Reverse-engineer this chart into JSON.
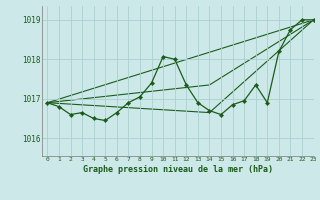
{
  "title": "Graphe pression niveau de la mer (hPa)",
  "background_color": "#cde8e8",
  "grid_color": "#aad0d0",
  "line_color": "#1a5c1a",
  "marker_color": "#1a5c1a",
  "xlim": [
    -0.5,
    23
  ],
  "ylim": [
    1015.55,
    1019.35
  ],
  "yticks": [
    1016,
    1017,
    1018,
    1019
  ],
  "xticks": [
    0,
    1,
    2,
    3,
    4,
    5,
    6,
    7,
    8,
    9,
    10,
    11,
    12,
    13,
    14,
    15,
    16,
    17,
    18,
    19,
    20,
    21,
    22,
    23
  ],
  "series1_x": [
    0,
    1,
    2,
    3,
    4,
    5,
    6,
    7,
    8,
    9,
    10,
    11,
    12,
    13,
    14,
    15,
    16,
    17,
    18,
    19,
    20,
    21,
    22,
    23
  ],
  "series1_y": [
    1016.9,
    1016.8,
    1016.6,
    1016.65,
    1016.5,
    1016.45,
    1016.65,
    1016.9,
    1017.05,
    1017.4,
    1018.07,
    1018.0,
    1017.35,
    1016.9,
    1016.7,
    1016.6,
    1016.85,
    1016.95,
    1017.35,
    1016.9,
    1018.2,
    1018.75,
    1019.0,
    1019.0
  ],
  "trend1_x": [
    0,
    23
  ],
  "trend1_y": [
    1016.9,
    1019.0
  ],
  "trend2_x": [
    0,
    14,
    23
  ],
  "trend2_y": [
    1016.9,
    1016.65,
    1019.0
  ],
  "trend3_x": [
    0,
    14,
    23
  ],
  "trend3_y": [
    1016.9,
    1017.35,
    1019.0
  ]
}
